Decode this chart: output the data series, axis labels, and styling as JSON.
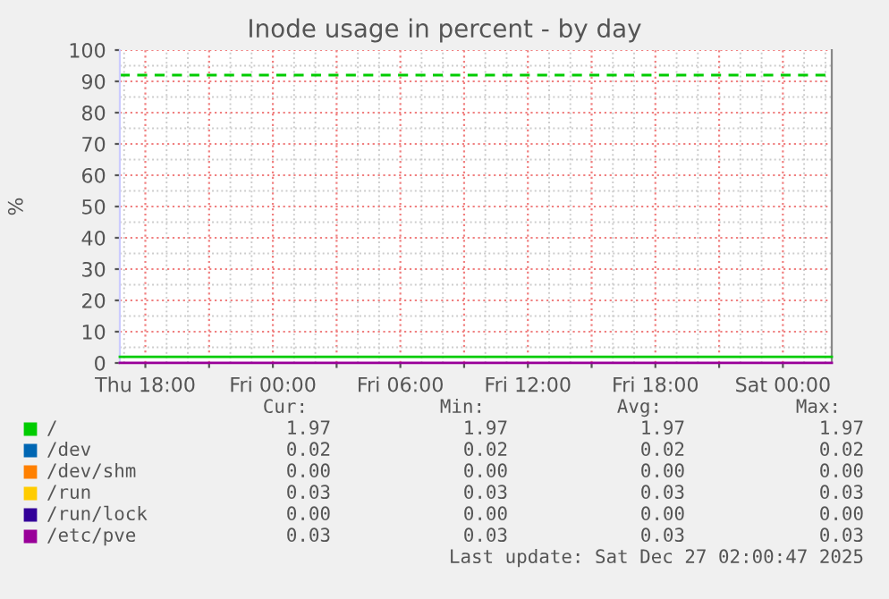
{
  "chart_data": {
    "type": "line",
    "title": "Inode usage in percent - by day",
    "ylabel": "%",
    "x": [
      "2025-12-25T16:48",
      "2025-12-27T02:18"
    ],
    "series": [
      {
        "name": "/",
        "color": "#00cc00",
        "values": [
          1.97,
          1.97
        ]
      },
      {
        "name": "/dev",
        "color": "#0066b3",
        "values": [
          null,
          null
        ]
      },
      {
        "name": "/dev/shm",
        "color": "#ff8000",
        "values": [
          null,
          null
        ]
      },
      {
        "name": "/run",
        "color": "#ffcc00",
        "values": [
          null,
          null
        ]
      },
      {
        "name": "/run/lock",
        "color": "#330099",
        "values": [
          null,
          null
        ]
      },
      {
        "name": "/etc/pve",
        "color": "#990099",
        "values": [
          0.03,
          0.03
        ]
      }
    ],
    "xlim": [
      "2025-12-25T16:48",
      "2025-12-27T02:18"
    ],
    "xticks": [
      {
        "value": "2025-12-25T18:00",
        "label": "Thu 18:00"
      },
      {
        "value": "2025-12-25T21:00",
        "label": null
      },
      {
        "value": "2025-12-26T00:00",
        "label": "Fri 00:00"
      },
      {
        "value": "2025-12-26T03:00",
        "label": null
      },
      {
        "value": "2025-12-26T06:00",
        "label": "Fri 06:00"
      },
      {
        "value": "2025-12-26T09:00",
        "label": null
      },
      {
        "value": "2025-12-26T12:00",
        "label": "Fri 12:00"
      },
      {
        "value": "2025-12-26T15:00",
        "label": null
      },
      {
        "value": "2025-12-26T18:00",
        "label": "Fri 18:00"
      },
      {
        "value": "2025-12-26T21:00",
        "label": null
      },
      {
        "value": "2025-12-27T00:00",
        "label": "Sat 00:00"
      }
    ],
    "ylim": [
      0,
      100
    ],
    "yticks": [
      0,
      10,
      20,
      30,
      40,
      50,
      60,
      70,
      80,
      90,
      100
    ],
    "ref_lines": [
      {
        "axis": "y",
        "value": 92,
        "color": "#00cc00",
        "line_style": "dashed"
      }
    ],
    "grid": true,
    "legend": "bottom",
    "marker": "none",
    "line_style": "solid",
    "annotations": [
      "Cur:",
      "Min:",
      "Avg:",
      "Max:",
      "1.97",
      "1.97",
      "1.97",
      "1.97",
      "0.02",
      "0.02",
      "0.02",
      "0.02",
      "0.00",
      "0.00",
      "0.00",
      "0.00",
      "0.03",
      "0.03",
      "0.03",
      "0.03",
      "0.00",
      "0.00",
      "0.00",
      "0.00",
      "0.03",
      "0.03",
      "0.03",
      "0.03",
      "Last update: Sat Dec 27 02:00:47 2025"
    ]
  }
}
